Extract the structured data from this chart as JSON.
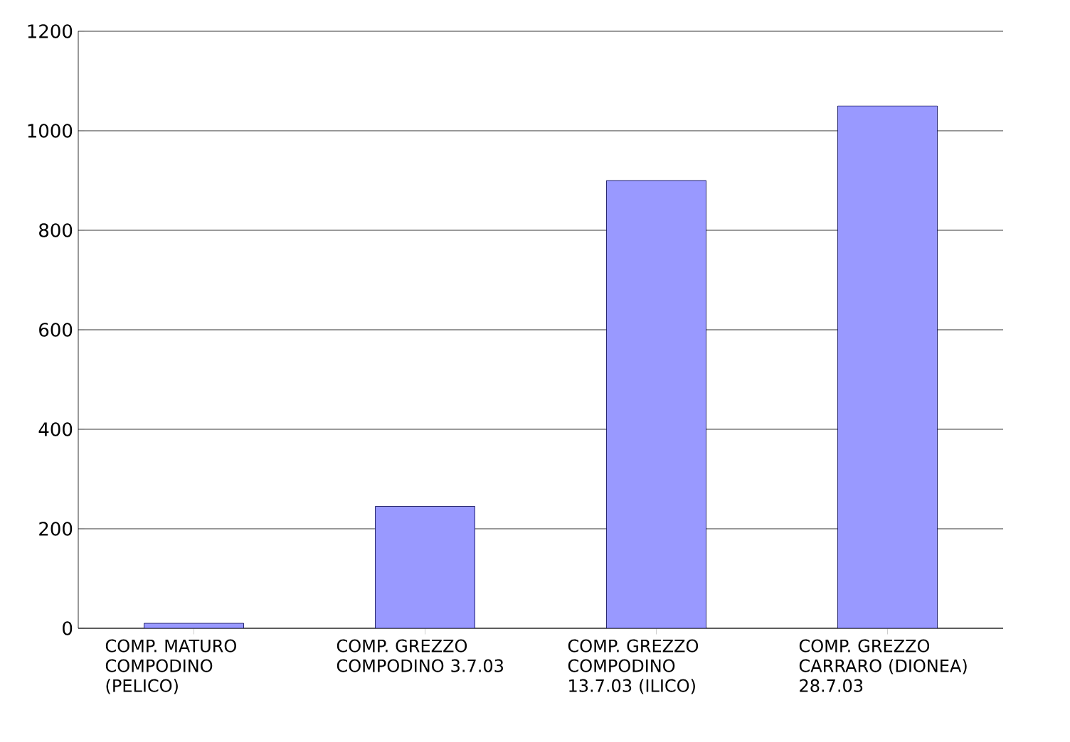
{
  "chart_data": {
    "type": "bar",
    "categories": [
      "COMP. MATURO COMPODINO (PELICO)",
      "COMP. GREZZO COMPODINO 3.7.03",
      "COMP. GREZZO COMPODINO 13.7.03 (ILICO)",
      "COMP. GREZZO CARRARO (DIONEA) 28.7.03"
    ],
    "values": [
      10,
      245,
      900,
      1050
    ],
    "color": "#9999ff",
    "ylim": [
      0,
      1200
    ],
    "yticks": [
      0,
      200,
      400,
      600,
      800,
      1000,
      1200
    ],
    "grid": "y"
  }
}
